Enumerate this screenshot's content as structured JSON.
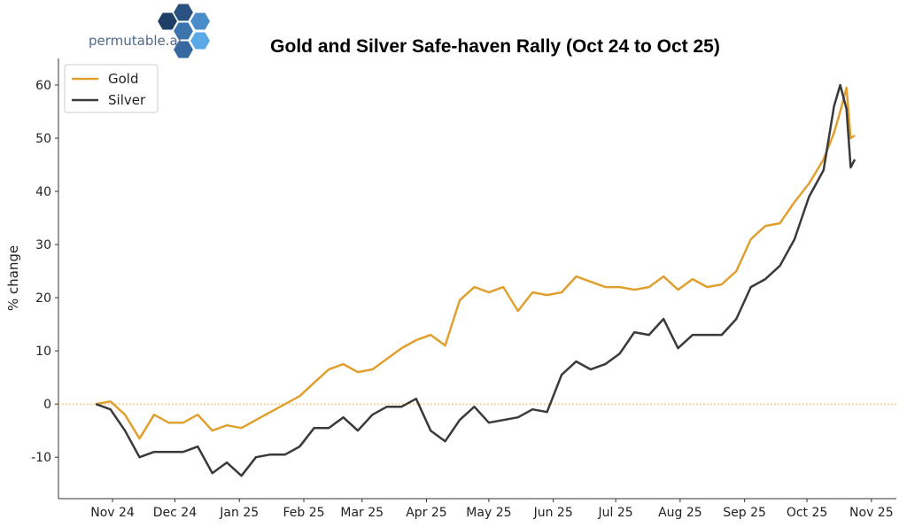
{
  "logo": {
    "text": "permutable.ai",
    "colors": [
      "#1f3f66",
      "#2a5280",
      "#3c74ad",
      "#4a8bc9",
      "#5aa9e6",
      "#3569a0"
    ]
  },
  "chart_data": {
    "type": "line",
    "title": "Gold and Silver Safe-haven Rally (Oct 24 to Oct 25)",
    "xlabel": "",
    "ylabel": "% change",
    "xlim": [
      "2024-10-06",
      "2025-11-13"
    ],
    "ylim": [
      -17.8,
      65
    ],
    "grid": false,
    "legend": "top-left",
    "x_ticks": [
      {
        "date": "2024-11-01",
        "label": "Nov 24"
      },
      {
        "date": "2024-12-01",
        "label": "Dec 24"
      },
      {
        "date": "2025-01-01",
        "label": "Jan 25"
      },
      {
        "date": "2025-02-01",
        "label": "Feb 25"
      },
      {
        "date": "2025-03-01",
        "label": "Mar 25"
      },
      {
        "date": "2025-04-01",
        "label": "Apr 25"
      },
      {
        "date": "2025-05-01",
        "label": "May 25"
      },
      {
        "date": "2025-06-01",
        "label": "Jun 25"
      },
      {
        "date": "2025-07-01",
        "label": "Jul 25"
      },
      {
        "date": "2025-08-01",
        "label": "Aug 25"
      },
      {
        "date": "2025-09-01",
        "label": "Sep 25"
      },
      {
        "date": "2025-10-01",
        "label": "Oct 25"
      },
      {
        "date": "2025-11-01",
        "label": "Nov 25"
      }
    ],
    "y_ticks": [
      -10,
      0,
      10,
      20,
      30,
      40,
      50,
      60
    ],
    "reference_line": {
      "y": 0,
      "style": "dotted",
      "color": "#e0a030"
    },
    "x": [
      "2024-10-24",
      "2024-10-31",
      "2024-11-07",
      "2024-11-14",
      "2024-11-21",
      "2024-11-28",
      "2024-12-05",
      "2024-12-12",
      "2024-12-19",
      "2024-12-26",
      "2025-01-02",
      "2025-01-09",
      "2025-01-16",
      "2025-01-23",
      "2025-01-30",
      "2025-02-06",
      "2025-02-13",
      "2025-02-20",
      "2025-02-27",
      "2025-03-06",
      "2025-03-13",
      "2025-03-20",
      "2025-03-27",
      "2025-04-03",
      "2025-04-10",
      "2025-04-17",
      "2025-04-24",
      "2025-05-01",
      "2025-05-08",
      "2025-05-15",
      "2025-05-22",
      "2025-05-29",
      "2025-06-05",
      "2025-06-12",
      "2025-06-19",
      "2025-06-26",
      "2025-07-03",
      "2025-07-10",
      "2025-07-17",
      "2025-07-24",
      "2025-07-31",
      "2025-08-07",
      "2025-08-14",
      "2025-08-21",
      "2025-08-28",
      "2025-09-04",
      "2025-09-11",
      "2025-09-18",
      "2025-09-25",
      "2025-10-02",
      "2025-10-09",
      "2025-10-14",
      "2025-10-17",
      "2025-10-20",
      "2025-10-22",
      "2025-10-24"
    ],
    "series": [
      {
        "name": "Gold",
        "color": "#e0a030",
        "values": [
          0,
          0.5,
          -2,
          -6.5,
          -2,
          -3.5,
          -3.5,
          -2,
          -5,
          -4,
          -4.5,
          -3,
          -1.5,
          0,
          1.5,
          4,
          6.5,
          7.5,
          6,
          6.5,
          8.5,
          10.5,
          12,
          13,
          11,
          19.5,
          22,
          21,
          22,
          17.5,
          21,
          20.5,
          21,
          24,
          23,
          22,
          22,
          21.5,
          22,
          24,
          21.5,
          23.5,
          22,
          22.5,
          25,
          31,
          33.5,
          34,
          38,
          41.5,
          46,
          51,
          55,
          59.5,
          50,
          50.5
        ]
      },
      {
        "name": "Silver",
        "color": "#3a3a3a",
        "values": [
          0,
          -1,
          -5,
          -10,
          -9,
          -9,
          -9,
          -8,
          -13,
          -11,
          -13.5,
          -10,
          -9.5,
          -9.5,
          -8,
          -4.5,
          -4.5,
          -2.5,
          -5,
          -2,
          -0.5,
          -0.5,
          1,
          -5,
          -7,
          -3,
          -0.5,
          -3.5,
          -3,
          -2.5,
          -1,
          -1.5,
          5.5,
          8,
          6.5,
          7.5,
          9.5,
          13.5,
          13,
          16,
          10.5,
          13,
          13,
          13,
          16,
          22,
          23.5,
          26,
          31,
          39,
          44,
          56,
          60,
          55.5,
          44.5,
          46
        ]
      }
    ]
  }
}
